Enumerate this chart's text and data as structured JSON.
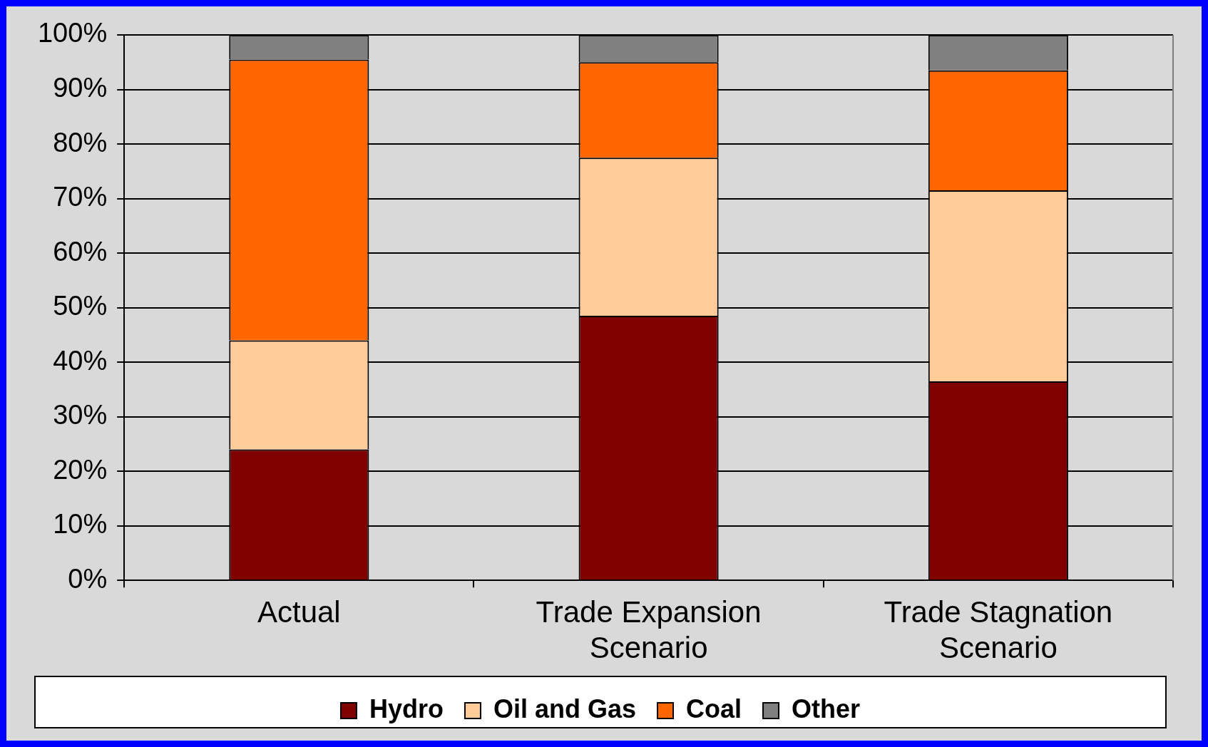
{
  "chart_data": {
    "type": "bar",
    "stacked": true,
    "categories": [
      "Actual",
      "Trade Expansion Scenario",
      "Trade Stagnation Scenario"
    ],
    "series": [
      {
        "name": "Hydro",
        "color": "#800000",
        "values": [
          24,
          48.5,
          36.5
        ]
      },
      {
        "name": "Oil and Gas",
        "color": "#ffcc99",
        "values": [
          20,
          29,
          35
        ]
      },
      {
        "name": "Coal",
        "color": "#ff6600",
        "values": [
          51.5,
          17.5,
          22
        ]
      },
      {
        "name": "Other",
        "color": "#808080",
        "values": [
          4.5,
          5,
          6.5
        ]
      }
    ],
    "ylim": [
      0,
      100
    ],
    "yticks": [
      {
        "value": 0,
        "label": "0%"
      },
      {
        "value": 10,
        "label": "10%"
      },
      {
        "value": 20,
        "label": "20%"
      },
      {
        "value": 30,
        "label": "30%"
      },
      {
        "value": 40,
        "label": "40%"
      },
      {
        "value": 50,
        "label": "50%"
      },
      {
        "value": 60,
        "label": "60%"
      },
      {
        "value": 70,
        "label": "70%"
      },
      {
        "value": 80,
        "label": "80%"
      },
      {
        "value": 90,
        "label": "90%"
      },
      {
        "value": 100,
        "label": "100%"
      }
    ],
    "grid": "y",
    "legend": "bottom"
  }
}
